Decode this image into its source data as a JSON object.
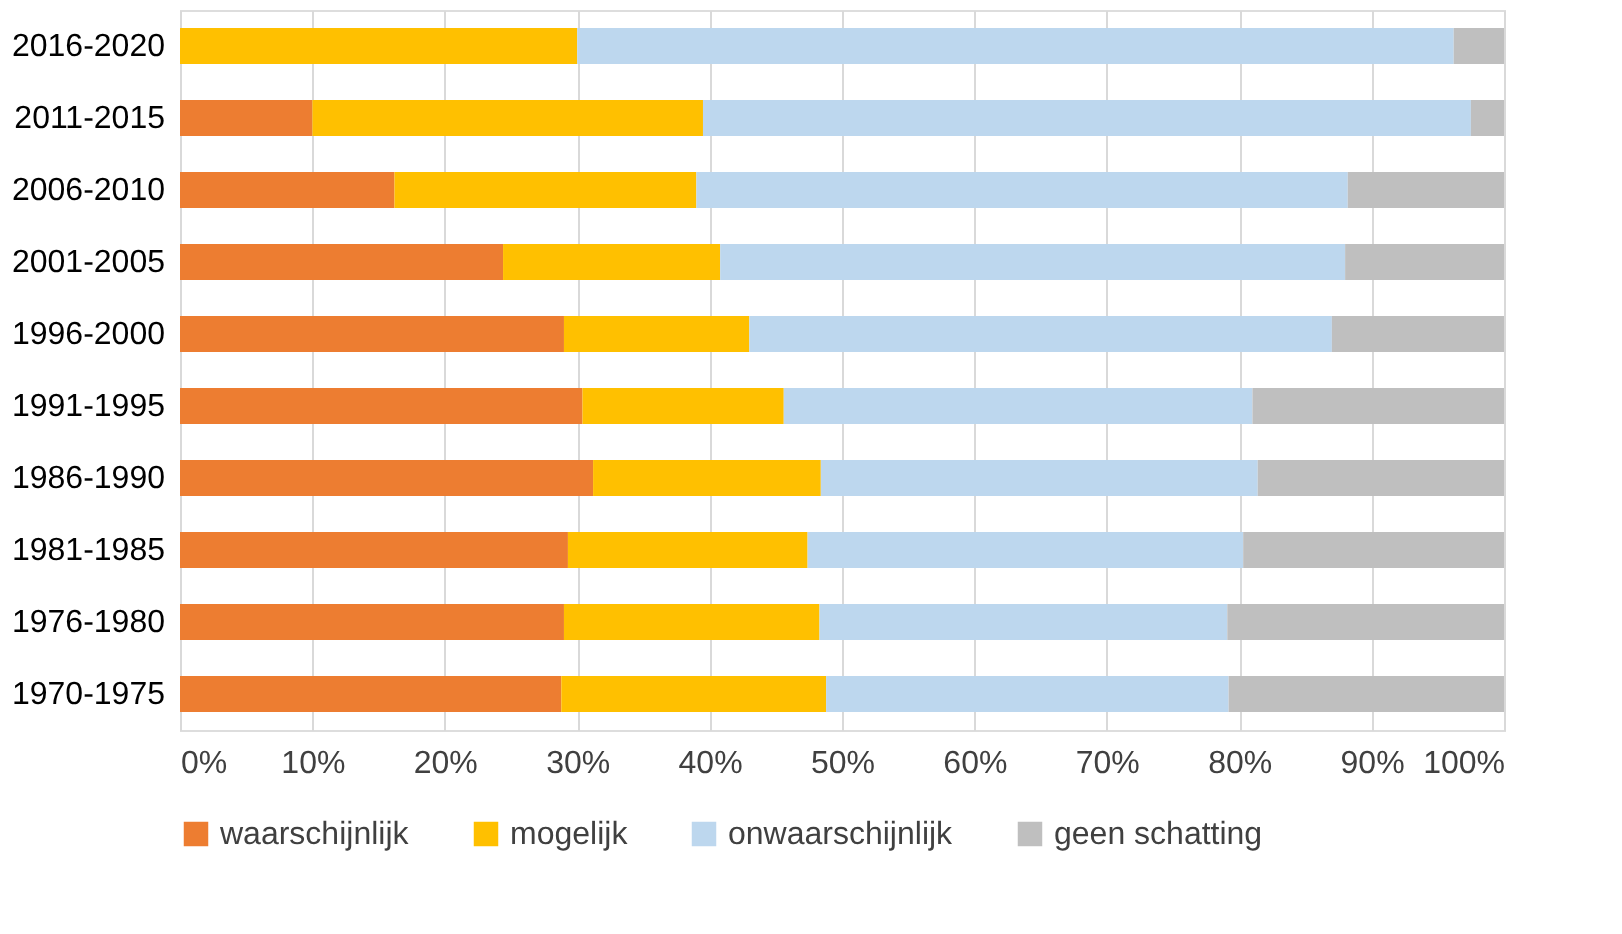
{
  "chart_data": {
    "type": "bar",
    "orientation": "horizontal",
    "stacked": true,
    "categories": [
      "2016-2020",
      "2011-2015",
      "2006-2010",
      "2001-2005",
      "1996-2000",
      "1991-1995",
      "1986-1990",
      "1981-1985",
      "1976-1980",
      "1970-1975"
    ],
    "series": [
      {
        "name": "waarschijnlijk",
        "color": "#ed7d31",
        "values": [
          0,
          10,
          16.2,
          24.4,
          29,
          30.4,
          31.2,
          29.3,
          29,
          28.8
        ]
      },
      {
        "name": "mogelijk",
        "color": "#ffc000",
        "values": [
          30,
          29.5,
          22.8,
          16.4,
          14,
          15.2,
          17.2,
          18.1,
          19.3,
          20
        ]
      },
      {
        "name": "onwaarschijnlijk",
        "color": "#bdd7ee",
        "values": [
          66.2,
          58,
          49.2,
          47.2,
          44,
          35.4,
          33,
          32.9,
          30.8,
          30.4
        ]
      },
      {
        "name": "geen schatting",
        "color": "#bfbfbf",
        "values": [
          3.8,
          2.5,
          11.8,
          12,
          13,
          19,
          18.6,
          19.7,
          20.9,
          20.8
        ]
      }
    ],
    "xlim": [
      0,
      100
    ],
    "xticks": [
      {
        "value": 0,
        "label": "0%"
      },
      {
        "value": 10,
        "label": "10%"
      },
      {
        "value": 20,
        "label": "20%"
      },
      {
        "value": 30,
        "label": "30%"
      },
      {
        "value": 40,
        "label": "40%"
      },
      {
        "value": 50,
        "label": "50%"
      },
      {
        "value": 60,
        "label": "60%"
      },
      {
        "value": 70,
        "label": "70%"
      },
      {
        "value": 80,
        "label": "80%"
      },
      {
        "value": 90,
        "label": "90%"
      },
      {
        "value": 100,
        "label": "100%"
      }
    ],
    "grid": "x",
    "legend": "bottom"
  }
}
